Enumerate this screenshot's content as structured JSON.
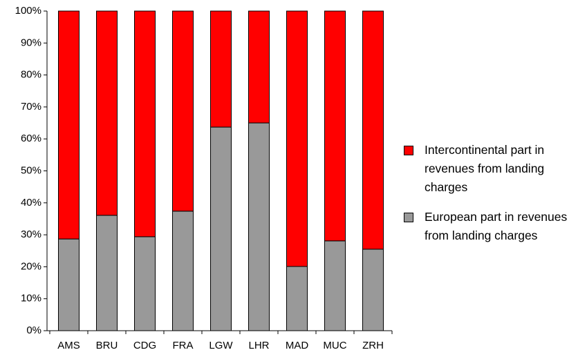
{
  "chart_data": {
    "type": "stacked-bar",
    "categories": [
      "AMS",
      "BRU",
      "CDG",
      "FRA",
      "LGW",
      "LHR",
      "MAD",
      "MUC",
      "ZRH"
    ],
    "series": [
      {
        "name": "European part in revenues from landing charges",
        "color": "#999999",
        "values": [
          28.7,
          36.1,
          29.4,
          37.4,
          63.7,
          65,
          20.1,
          28.1,
          25.5
        ]
      },
      {
        "name": "Intercontinental part in revenues from landing charges",
        "color": "#ff0000",
        "values": [
          71.3,
          63.9,
          70.6,
          62.6,
          36.3,
          35,
          79.9,
          71.9,
          74.5
        ]
      }
    ],
    "ylim": [
      0,
      100
    ],
    "yticks": [
      {
        "value": 0,
        "label": "0%"
      },
      {
        "value": 10,
        "label": "10%"
      },
      {
        "value": 20,
        "label": "20%"
      },
      {
        "value": 30,
        "label": "30%"
      },
      {
        "value": 40,
        "label": "40%"
      },
      {
        "value": 50,
        "label": "50%"
      },
      {
        "value": 60,
        "label": "60%"
      },
      {
        "value": 70,
        "label": "70%"
      },
      {
        "value": 80,
        "label": "80%"
      },
      {
        "value": 90,
        "label": "90%"
      },
      {
        "value": 100,
        "label": "100%"
      }
    ],
    "grid": false
  }
}
